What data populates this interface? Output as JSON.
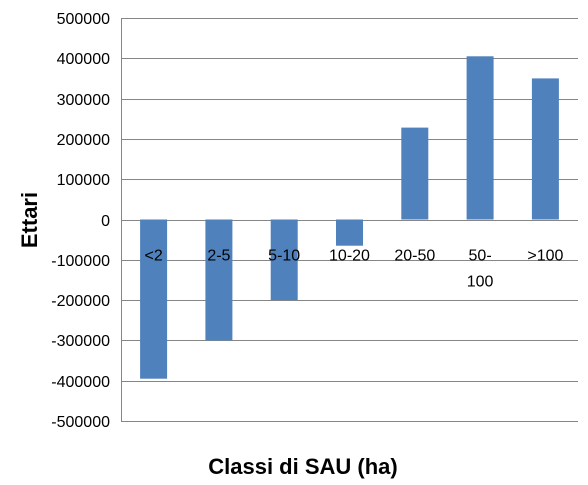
{
  "chart_data": {
    "type": "bar",
    "title": "",
    "xlabel": "Classi di SAU (ha)",
    "ylabel": "Ettari",
    "categories": [
      "<2",
      "2-5",
      "5-10",
      "10-20",
      "20-50",
      "50-100",
      ">100"
    ],
    "category_label_lines": [
      [
        "<2"
      ],
      [
        "2-5"
      ],
      [
        "5-10"
      ],
      [
        "10-20"
      ],
      [
        "20-50"
      ],
      [
        "50-",
        "100"
      ],
      [
        ">100"
      ]
    ],
    "values": [
      -395000,
      -300000,
      -200000,
      -65000,
      228000,
      405000,
      350000
    ],
    "ylim": [
      -500000,
      500000
    ],
    "yticks": [
      500000,
      400000,
      300000,
      200000,
      100000,
      0,
      -100000,
      -200000,
      -300000,
      -400000,
      -500000
    ],
    "yticklabels": [
      "500000",
      "400000",
      "300000",
      "200000",
      "100000",
      "0",
      "-100000",
      "-200000",
      "-300000",
      "-400000",
      "-500000"
    ],
    "grid": true,
    "legend": "none",
    "bar_color": "#4f81bd",
    "grid_color": "#868686"
  }
}
